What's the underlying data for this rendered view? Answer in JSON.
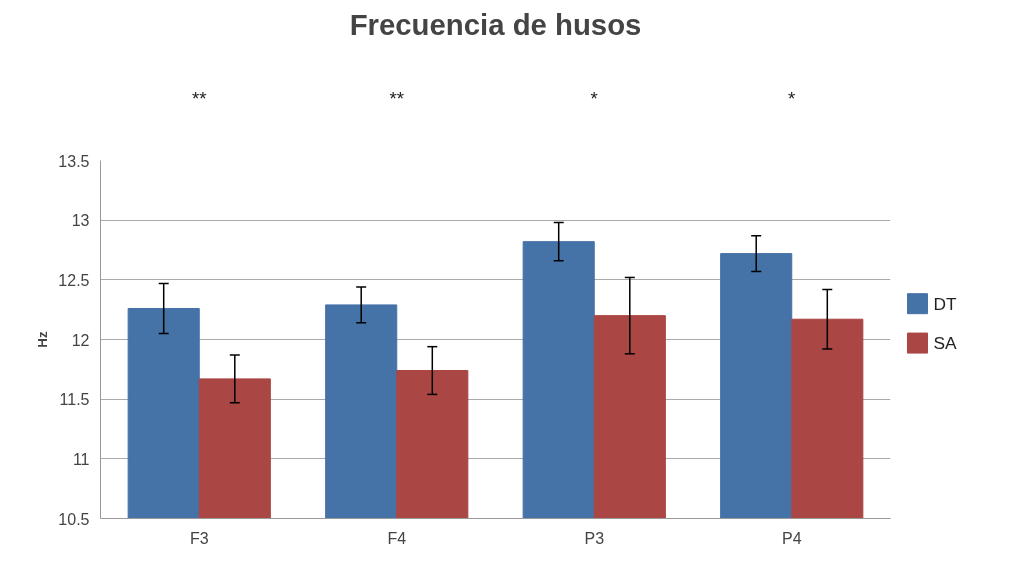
{
  "chart_data": {
    "type": "bar",
    "title": "Frecuencia de husos",
    "ylabel": "Hz",
    "categories": [
      "F3",
      "F4",
      "P3",
      "P4"
    ],
    "series": [
      {
        "name": "DT",
        "color": "#4572a7",
        "values": [
          12.26,
          12.29,
          12.82,
          12.72
        ],
        "errors": [
          0.21,
          0.15,
          0.16,
          0.15
        ]
      },
      {
        "name": "SA",
        "color": "#aa4643",
        "values": [
          11.67,
          11.74,
          12.2,
          12.17
        ],
        "errors": [
          0.2,
          0.2,
          0.32,
          0.25
        ]
      }
    ],
    "ylim": [
      10.5,
      13.5
    ],
    "yticks": [
      10.5,
      11,
      11.5,
      12,
      12.5,
      13,
      13.5
    ],
    "grid": "y",
    "legend": "right",
    "annotations": [
      "**",
      "**",
      "*",
      "*"
    ]
  }
}
